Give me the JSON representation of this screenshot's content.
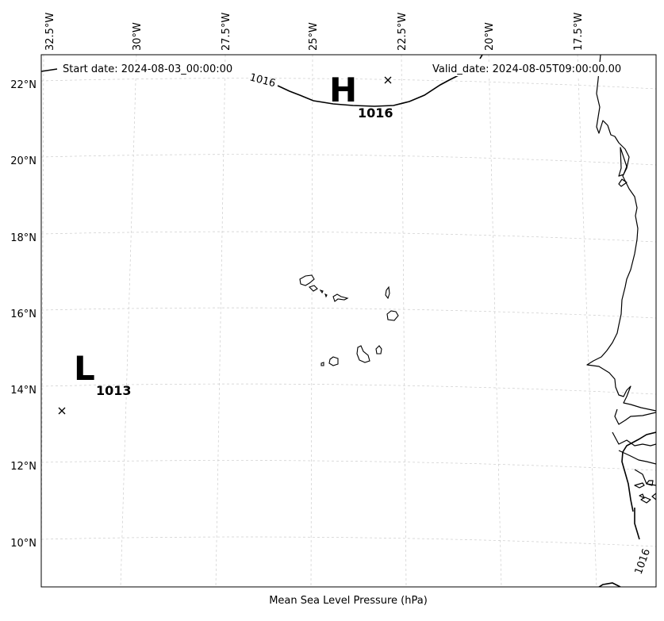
{
  "header": {
    "start_date": "Start date: 2024-08-03_00:00:00",
    "valid_date": "Valid_date: 2024-08-05T09:00:00.00"
  },
  "caption": "Mean Sea Level Pressure (hPa)",
  "lon_labels": [
    "32.5°W",
    "30°W",
    "27.5°W",
    "25°W",
    "22.5°W",
    "20°W",
    "17.5°W"
  ],
  "lat_labels": [
    "22°N",
    "20°N",
    "18°N",
    "16°N",
    "14°N",
    "12°N",
    "10°N"
  ],
  "pressure_centers": {
    "high": {
      "letter": "H",
      "value": "1016"
    },
    "low": {
      "letter": "L",
      "value": "1013"
    }
  },
  "contour_labels": [
    "1016",
    "1016"
  ]
}
